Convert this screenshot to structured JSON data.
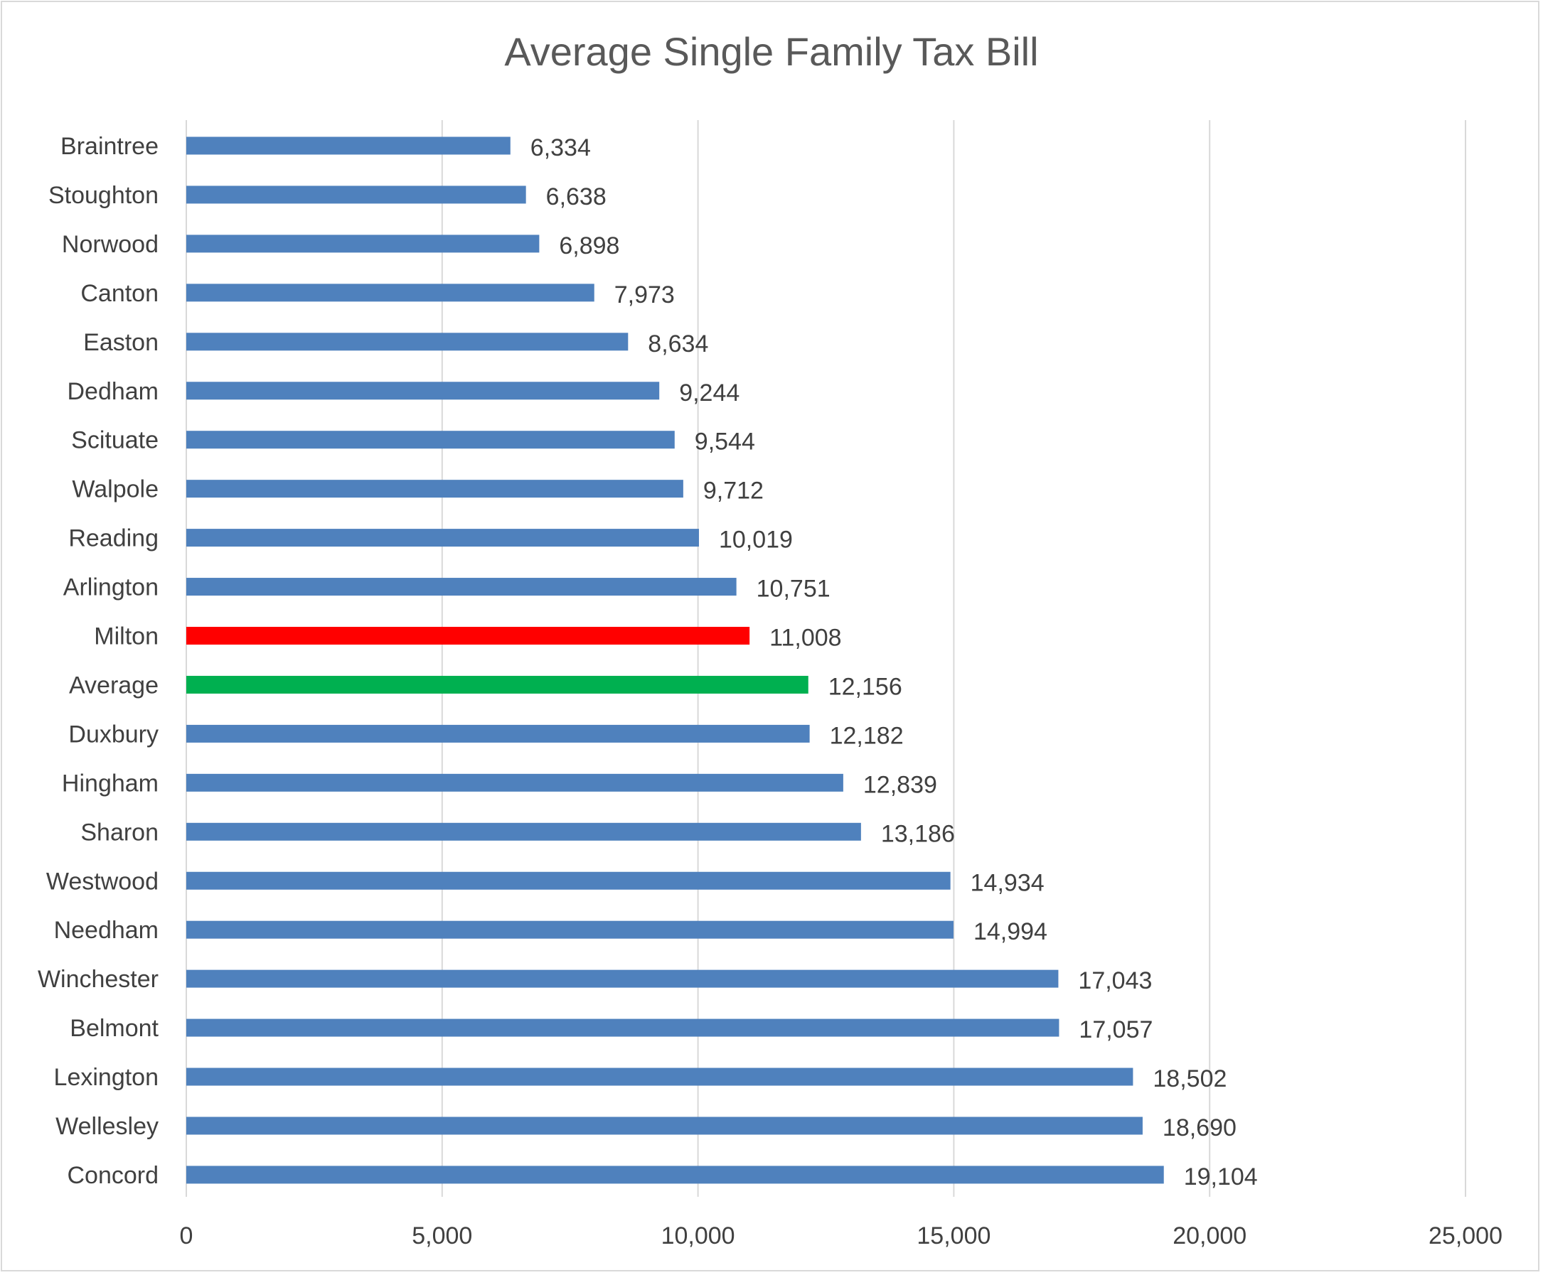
{
  "chart_data": {
    "type": "bar",
    "orientation": "horizontal",
    "title": "Average Single Family Tax Bill",
    "xlabel": "",
    "ylabel": "",
    "xlim": [
      0,
      25000
    ],
    "x_ticks": [
      "0",
      "5,000",
      "10,000",
      "15,000",
      "20,000",
      "25,000"
    ],
    "x_tick_values": [
      0,
      5000,
      10000,
      15000,
      20000,
      25000
    ],
    "grid": "vertical",
    "legend": "none",
    "categories": [
      "Braintree",
      "Stoughton",
      "Norwood",
      "Canton",
      "Easton",
      "Dedham",
      "Scituate",
      "Walpole",
      "Reading",
      "Arlington",
      "Milton",
      "Average",
      "Duxbury",
      "Hingham",
      "Sharon",
      "Westwood",
      "Needham",
      "Winchester",
      "Belmont",
      "Lexington",
      "Wellesley",
      "Concord"
    ],
    "values": [
      6334,
      6638,
      6898,
      7973,
      8634,
      9244,
      9544,
      9712,
      10019,
      10751,
      11008,
      12156,
      12182,
      12839,
      13186,
      14934,
      14994,
      17043,
      17057,
      18502,
      18690,
      19104
    ],
    "data_labels": [
      "6,334",
      "6,638",
      "6,898",
      "7,973",
      "8,634",
      "9,244",
      "9,544",
      "9,712",
      "10,019",
      "10,751",
      "11,008",
      "12,156",
      "12,182",
      "12,839",
      "13,186",
      "14,934",
      "14,994",
      "17,043",
      "17,057",
      "18,502",
      "18,690",
      "19,104"
    ],
    "colors": {
      "default": "#4F81BD",
      "Milton": "#FF0000",
      "Average": "#00B050"
    }
  }
}
